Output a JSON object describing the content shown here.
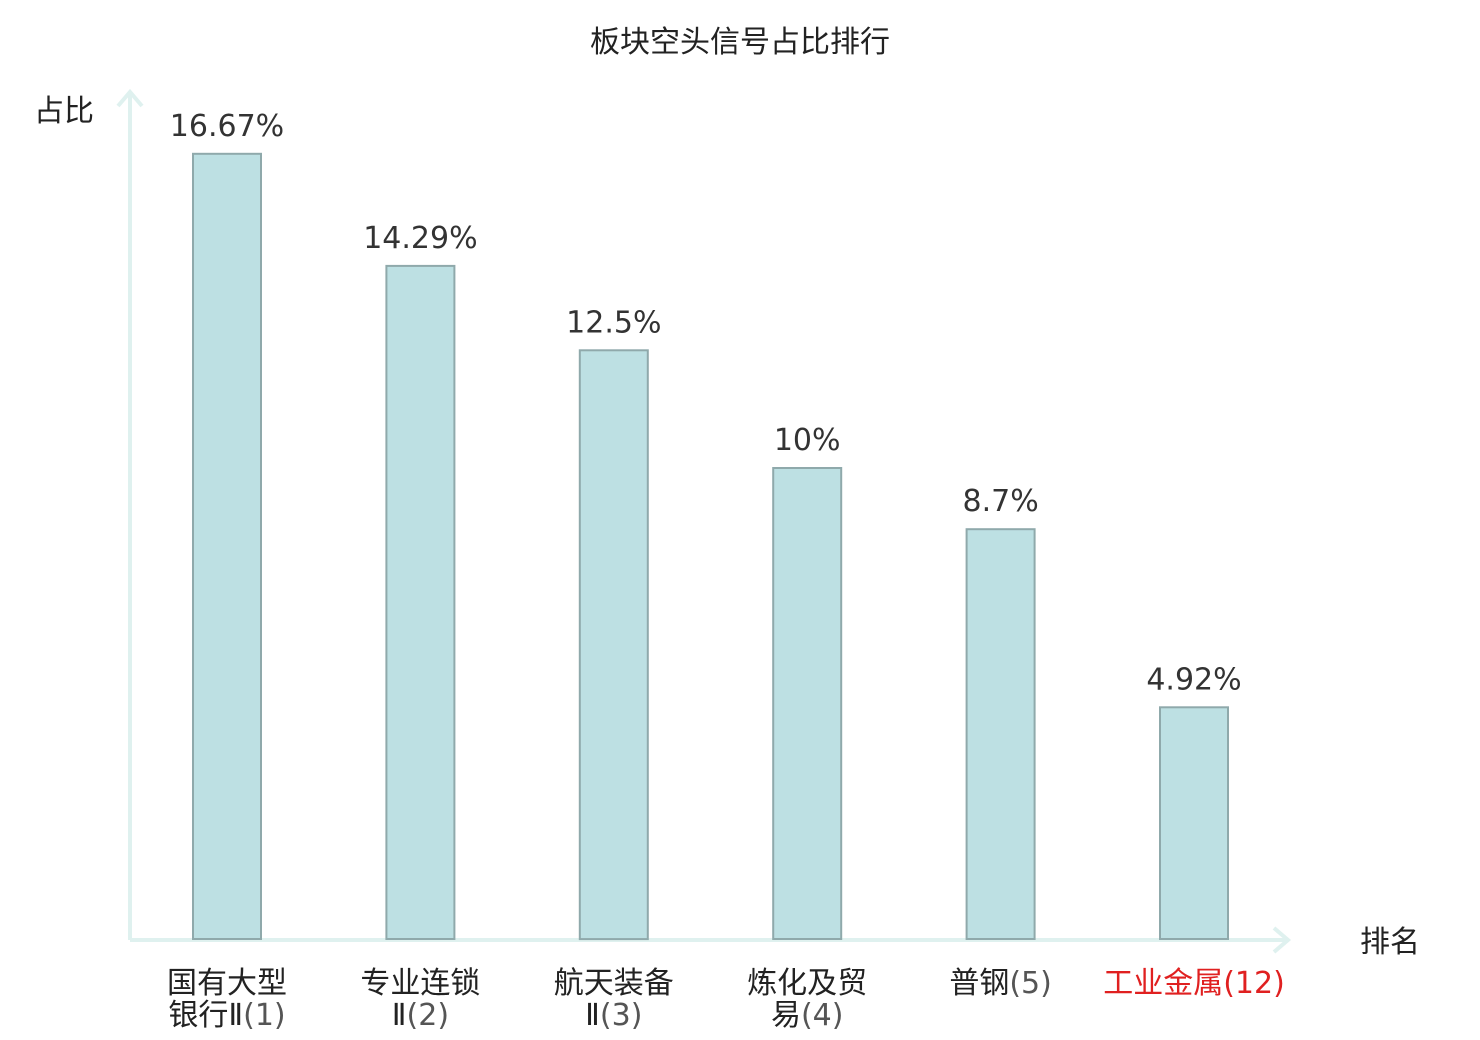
{
  "chart_data": {
    "type": "bar",
    "title": "板块空头信号占比排行",
    "ylabel": "占比",
    "xlabel": "排名",
    "ylim": [
      0,
      18
    ],
    "grid": false,
    "categories": [
      {
        "lines": [
          "国有大型",
          "银行Ⅱ"
        ],
        "rank": "(1)",
        "highlight": false
      },
      {
        "lines": [
          "专业连锁",
          "Ⅱ"
        ],
        "rank": "(2)",
        "highlight": false
      },
      {
        "lines": [
          "航天装备",
          "Ⅱ"
        ],
        "rank": "(3)",
        "highlight": false
      },
      {
        "lines": [
          "炼化及贸",
          "易"
        ],
        "rank": "(4)",
        "highlight": false
      },
      {
        "lines": [
          "普钢"
        ],
        "rank": "(5)",
        "highlight": false
      },
      {
        "lines": [
          "工业金属"
        ],
        "rank": "(12)",
        "highlight": true
      }
    ],
    "values": [
      16.67,
      14.29,
      12.5,
      10,
      8.7,
      4.92
    ],
    "value_labels": [
      "16.67%",
      "14.29%",
      "12.5%",
      "10%",
      "8.7%",
      "4.92%"
    ],
    "colors": {
      "bar_fill": "#bde0e3",
      "bar_stroke": "#8fa9ab",
      "axis": "#dff1ef",
      "highlight_text": "#e02020"
    }
  }
}
